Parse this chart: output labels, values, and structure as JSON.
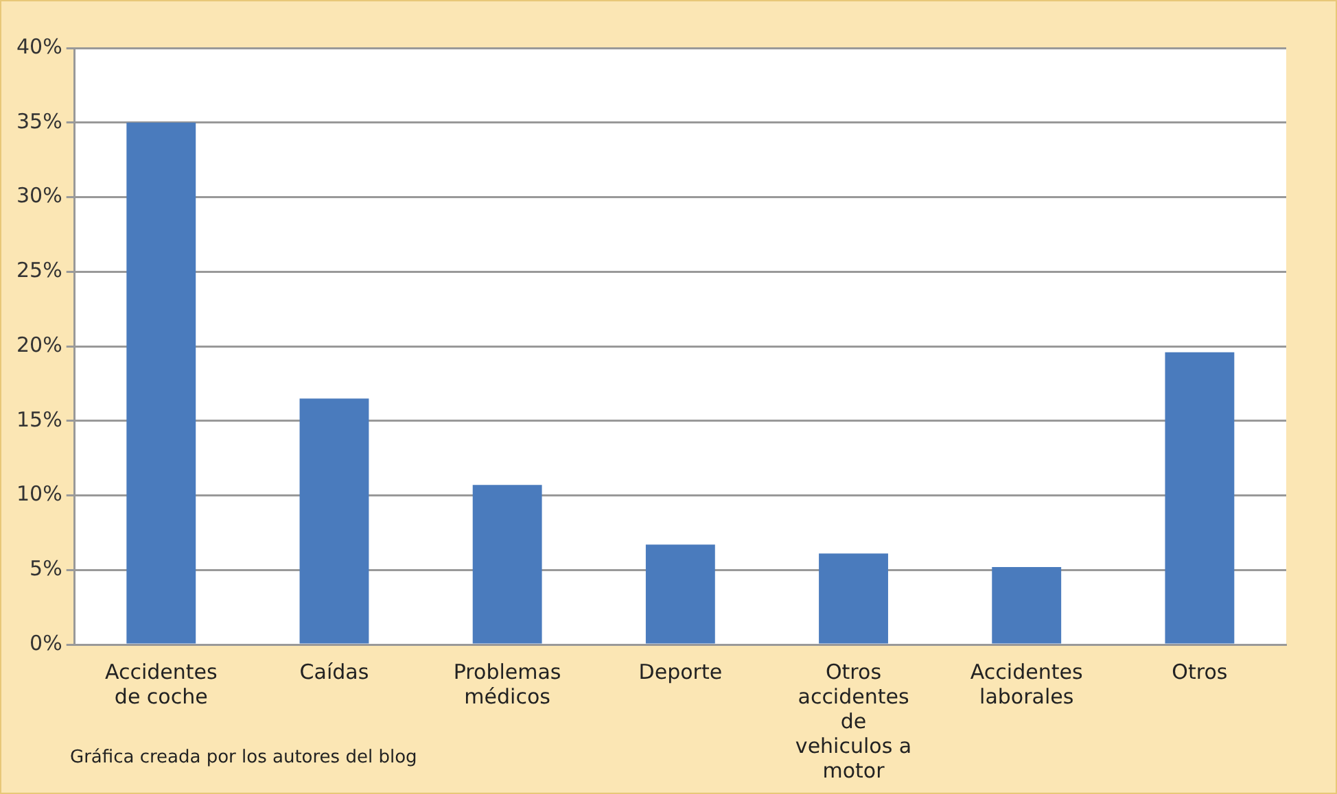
{
  "chart_data": {
    "type": "bar",
    "categories": [
      "Accidentes de coche",
      "Caídas",
      "Problemas médicos",
      "Deporte",
      "Otros accidentes de vehiculos a motor",
      "Accidentes laborales",
      "Otros"
    ],
    "values": [
      35,
      16.5,
      10.7,
      6.7,
      6.1,
      5.2,
      19.6
    ],
    "color": "#4a7bbd",
    "ylim": [
      0,
      40
    ],
    "yticks": [
      {
        "value": 0,
        "label": "0%"
      },
      {
        "value": 5,
        "label": "5%"
      },
      {
        "value": 10,
        "label": "10%"
      },
      {
        "value": 15,
        "label": "15%"
      },
      {
        "value": 20,
        "label": "20%"
      },
      {
        "value": 25,
        "label": "25%"
      },
      {
        "value": 30,
        "label": "30%"
      },
      {
        "value": 35,
        "label": "35%"
      },
      {
        "value": 40,
        "label": "40%"
      }
    ],
    "grid": "y",
    "annotations": [
      "Gráfica creada por los autores del blog"
    ]
  }
}
